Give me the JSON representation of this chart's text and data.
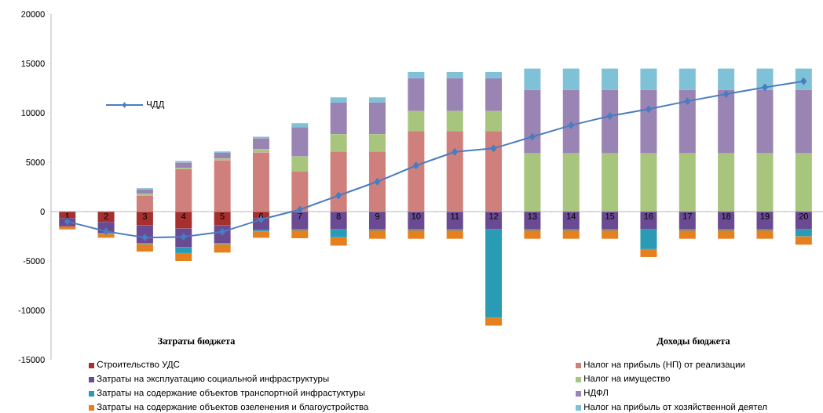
{
  "chart_data": {
    "type": "bar",
    "stacked": true,
    "legend": "bottom",
    "marker": "diamond",
    "categories": [
      "1",
      "2",
      "3",
      "4",
      "5",
      "6",
      "7",
      "8",
      "9",
      "10",
      "11",
      "12",
      "13",
      "14",
      "15",
      "16",
      "17",
      "18",
      "19",
      "20"
    ],
    "ylim": [
      -15000,
      20000
    ],
    "yticks": [
      -15000,
      -10000,
      -5000,
      0,
      5000,
      10000,
      15000,
      20000
    ],
    "annotations": [
      "Затраты бюджета",
      "Доходы бюджета"
    ],
    "series": [
      {
        "name": "Строительство УДС",
        "color": "#a5302e",
        "values": [
          -650,
          -1050,
          -1400,
          -1700,
          -1400,
          -650,
          0,
          0,
          0,
          0,
          0,
          0,
          0,
          0,
          0,
          0,
          0,
          0,
          0,
          0
        ]
      },
      {
        "name": "Затраты на эксплуатацию социальной инфраструктуры",
        "color": "#6a4a92",
        "values": [
          -850,
          -1100,
          -1800,
          -1900,
          -1800,
          -1200,
          -1800,
          -1800,
          -1800,
          -1800,
          -1800,
          -1800,
          -1800,
          -1800,
          -1800,
          -1800,
          -1800,
          -1800,
          -1800,
          -1800
        ]
      },
      {
        "name": "Затраты на содержание объектов транспортной инфрастуктуры",
        "color": "#2a9bb5",
        "values": [
          0,
          -100,
          -100,
          -600,
          -100,
          -150,
          -100,
          -800,
          -100,
          -100,
          -100,
          -8950,
          -100,
          -100,
          -100,
          -2000,
          -100,
          -100,
          -100,
          -700
        ]
      },
      {
        "name": "Затраты на содержание объектов озеленения и благоустройства",
        "color": "#e6801f",
        "values": [
          -300,
          -400,
          -750,
          -800,
          -850,
          -650,
          -800,
          -850,
          -850,
          -850,
          -850,
          -800,
          -850,
          -850,
          -850,
          -800,
          -850,
          -850,
          -850,
          -850
        ]
      },
      {
        "name": "Налог на прибыль (НП) от реализации",
        "color": "#d0807c",
        "values": [
          0,
          0,
          1630,
          4300,
          5200,
          6000,
          4050,
          6100,
          6100,
          8150,
          8150,
          8150,
          0,
          0,
          0,
          0,
          0,
          0,
          0,
          0
        ]
      },
      {
        "name": "Налог на имущество",
        "color": "#a8c57e",
        "values": [
          0,
          0,
          160,
          130,
          180,
          320,
          1530,
          1740,
          1740,
          2030,
          2030,
          2030,
          5900,
          5900,
          5900,
          5900,
          5900,
          5900,
          5900,
          5900
        ]
      },
      {
        "name": "НДФЛ",
        "color": "#9a84b4",
        "values": [
          0,
          0,
          450,
          530,
          580,
          1100,
          2970,
          3200,
          3200,
          3320,
          3320,
          3320,
          6420,
          6420,
          6420,
          6420,
          6420,
          6420,
          6420,
          6420
        ]
      },
      {
        "name": "Налог на прибыль  от хозяйственной деятел",
        "color": "#7fc1d6",
        "values": [
          0,
          0,
          130,
          160,
          130,
          160,
          400,
          530,
          530,
          630,
          630,
          630,
          2160,
          2160,
          2160,
          2160,
          2160,
          2160,
          2160,
          2160
        ]
      },
      {
        "name": "ЧДД",
        "type": "line",
        "color": "#4a7cc0",
        "values": [
          -1000,
          -2000,
          -2630,
          -2550,
          -2050,
          -800,
          200,
          1630,
          3030,
          4660,
          6050,
          6400,
          7580,
          8740,
          9680,
          10370,
          11180,
          11900,
          12580,
          13200
        ]
      }
    ]
  }
}
